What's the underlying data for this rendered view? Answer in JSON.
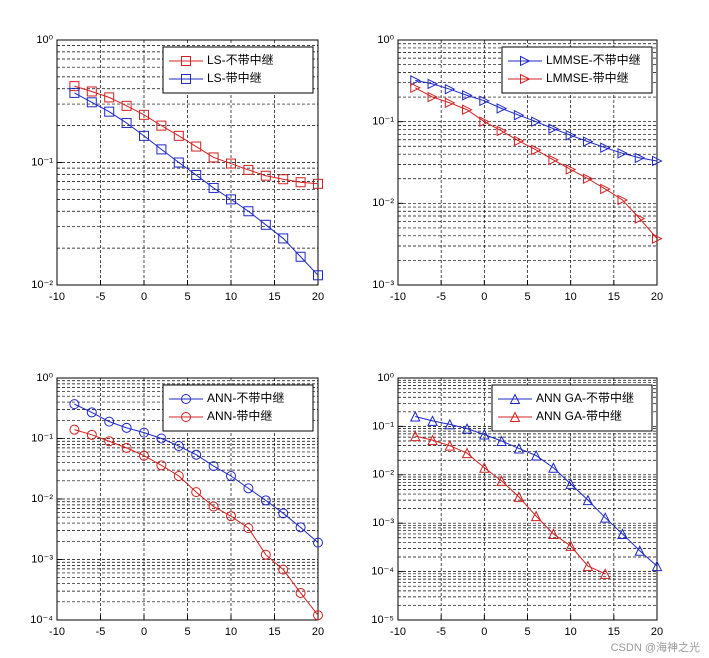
{
  "chart_data": [
    {
      "type": "line",
      "yscale": "log",
      "grid": true,
      "legend": "northeast",
      "x": [
        -8,
        -6,
        -4,
        -2,
        0,
        2,
        4,
        6,
        8,
        10,
        12,
        14,
        16,
        18,
        20
      ],
      "xlim": [
        -10,
        20
      ],
      "xticks": [
        -10,
        -5,
        0,
        5,
        10,
        15,
        20
      ],
      "ylim": [
        0.01,
        1
      ],
      "yticks": [
        {
          "value": 0.01,
          "label": "10⁻²"
        },
        {
          "value": 0.1,
          "label": "10⁻¹"
        },
        {
          "value": 1,
          "label": "10⁰"
        }
      ],
      "series": [
        {
          "name": "LS-不带中继",
          "color": "#d42020",
          "marker": "s",
          "values": [
            0.42,
            0.38,
            0.34,
            0.29,
            0.245,
            0.2,
            0.165,
            0.135,
            0.11,
            0.098,
            0.087,
            0.078,
            0.073,
            0.069,
            0.067
          ]
        },
        {
          "name": "LS-带中继",
          "color": "#1c28c8",
          "marker": "s",
          "values": [
            0.37,
            0.31,
            0.26,
            0.21,
            0.165,
            0.128,
            0.1,
            0.079,
            0.062,
            0.05,
            0.04,
            0.031,
            0.024,
            0.017,
            0.012
          ]
        }
      ]
    },
    {
      "type": "line",
      "yscale": "log",
      "grid": true,
      "legend": "northeast",
      "x": [
        -8,
        -6,
        -4,
        -2,
        0,
        2,
        4,
        6,
        8,
        10,
        12,
        14,
        16,
        18,
        20
      ],
      "xlim": [
        -10,
        20
      ],
      "xticks": [
        -10,
        -5,
        0,
        5,
        10,
        15,
        20
      ],
      "ylim": [
        0.001,
        1
      ],
      "yticks": [
        {
          "value": 0.001,
          "label": "10⁻³"
        },
        {
          "value": 0.01,
          "label": "10⁻²"
        },
        {
          "value": 0.1,
          "label": "10⁻¹"
        },
        {
          "value": 1,
          "label": "10⁰"
        }
      ],
      "series": [
        {
          "name": "LMMSE-不带中继",
          "color": "#1c28c8",
          "marker": ">",
          "values": [
            0.32,
            0.29,
            0.25,
            0.21,
            0.18,
            0.145,
            0.12,
            0.1,
            0.082,
            0.068,
            0.057,
            0.048,
            0.041,
            0.036,
            0.033
          ]
        },
        {
          "name": "LMMSE-带中继",
          "color": "#d42020",
          "marker": ">",
          "values": [
            0.26,
            0.2,
            0.17,
            0.14,
            0.1,
            0.077,
            0.058,
            0.045,
            0.034,
            0.026,
            0.02,
            0.015,
            0.011,
            0.0065,
            0.0037
          ]
        }
      ]
    },
    {
      "type": "line",
      "yscale": "log",
      "grid": true,
      "legend": "northeast",
      "x": [
        -8,
        -6,
        -4,
        -2,
        0,
        2,
        4,
        6,
        8,
        10,
        12,
        14,
        16,
        18,
        20
      ],
      "xlim": [
        -10,
        20
      ],
      "xticks": [
        -10,
        -5,
        0,
        5,
        10,
        15,
        20
      ],
      "ylim": [
        0.0001,
        1
      ],
      "yticks": [
        {
          "value": 0.0001,
          "label": "10⁻⁴"
        },
        {
          "value": 0.001,
          "label": "10⁻³"
        },
        {
          "value": 0.01,
          "label": "10⁻²"
        },
        {
          "value": 0.1,
          "label": "10⁻¹"
        },
        {
          "value": 1,
          "label": "10⁰"
        }
      ],
      "series": [
        {
          "name": "ANN-不带中继",
          "color": "#1c28c8",
          "marker": "o",
          "values": [
            0.37,
            0.27,
            0.19,
            0.15,
            0.125,
            0.1,
            0.075,
            0.054,
            0.035,
            0.024,
            0.015,
            0.0095,
            0.0058,
            0.0034,
            0.0019
          ]
        },
        {
          "name": "ANN-带中继",
          "color": "#d42020",
          "marker": "o",
          "values": [
            0.14,
            0.115,
            0.09,
            0.07,
            0.052,
            0.036,
            0.024,
            0.013,
            0.0075,
            0.0052,
            0.0033,
            0.0012,
            0.00068,
            0.00028,
            0.00012
          ]
        }
      ]
    },
    {
      "type": "line",
      "yscale": "log",
      "grid": true,
      "legend": "northeast",
      "x": [
        -8,
        -6,
        -4,
        -2,
        0,
        2,
        4,
        6,
        8,
        10,
        12,
        14,
        16,
        18,
        20
      ],
      "xlim": [
        -10,
        20
      ],
      "xticks": [
        -10,
        -5,
        0,
        5,
        10,
        15,
        20
      ],
      "ylim": [
        1e-05,
        1
      ],
      "yticks": [
        {
          "value": 1e-05,
          "label": "10⁻⁵"
        },
        {
          "value": 0.0001,
          "label": "10⁻⁴"
        },
        {
          "value": 0.001,
          "label": "10⁻³"
        },
        {
          "value": 0.01,
          "label": "10⁻²"
        },
        {
          "value": 0.1,
          "label": "10⁻¹"
        },
        {
          "value": 1,
          "label": "10⁰"
        }
      ],
      "series": [
        {
          "name": "ANN GA-不带中继",
          "color": "#1c28c8",
          "marker": "^",
          "values": [
            0.16,
            0.13,
            0.11,
            0.09,
            0.068,
            0.05,
            0.035,
            0.025,
            0.014,
            0.0065,
            0.003,
            0.0013,
            0.0006,
            0.00027,
            0.00013
          ]
        },
        {
          "name": "ANN GA-带中继",
          "color": "#d42020",
          "marker": "^",
          "values": [
            0.063,
            0.052,
            0.04,
            0.028,
            0.014,
            0.0075,
            0.0035,
            0.0014,
            0.0006,
            0.00034,
            0.00013,
            9e-05,
            null,
            null,
            null
          ]
        }
      ]
    }
  ],
  "watermark": "CSDN @海神之光"
}
